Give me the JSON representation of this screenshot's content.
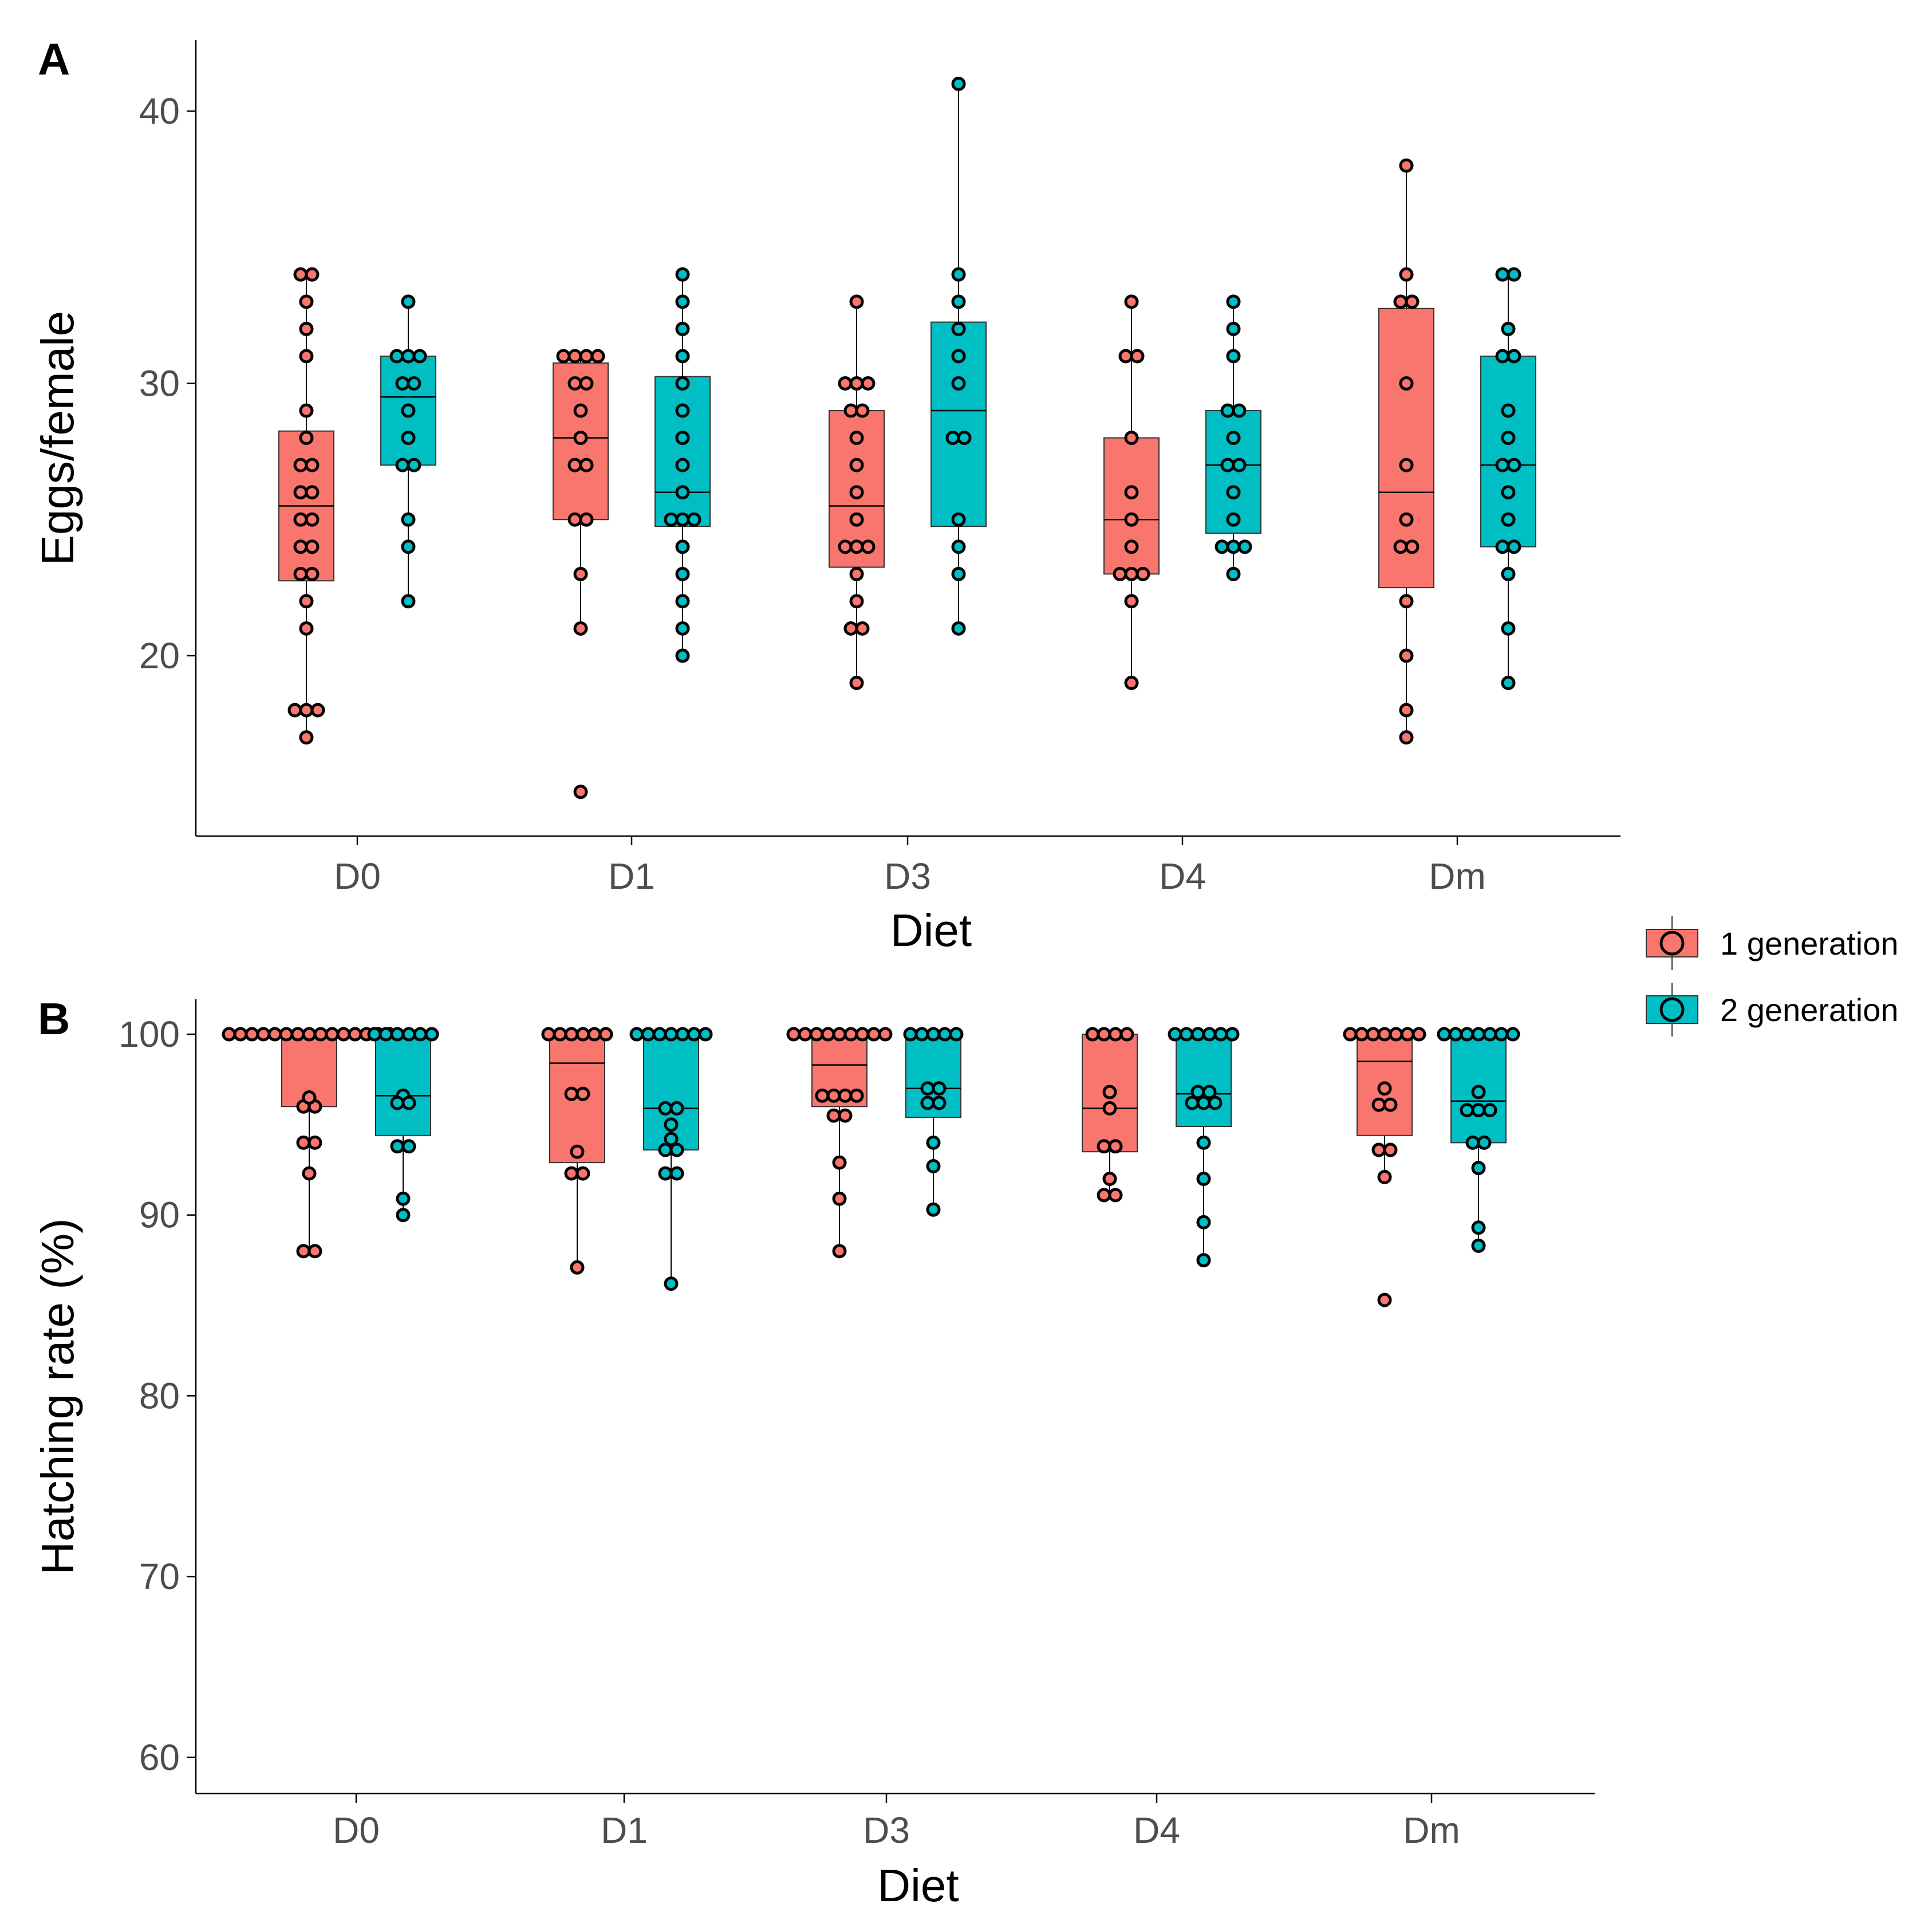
{
  "colors": {
    "gen1": "#F8766D",
    "gen2": "#00BFC4"
  },
  "legend": {
    "position": "right",
    "items": [
      {
        "label": "1 generation",
        "color": "#F8766D"
      },
      {
        "label": "2 generation",
        "color": "#00BFC4"
      }
    ]
  },
  "chart_data": [
    {
      "panel": "A",
      "type": "box",
      "xlabel": "Diet",
      "ylabel": "Eggs/female",
      "categories": [
        "D0",
        "D1",
        "D3",
        "D4",
        "Dm"
      ],
      "yticks": [
        20,
        30,
        40
      ],
      "ylim": [
        13.5,
        42.5
      ],
      "grid": false,
      "series": [
        {
          "name": "1 generation",
          "boxes": [
            {
              "category": "D0",
              "q1": 22.75,
              "median": 25.5,
              "q3": 28.25,
              "min": 17,
              "max": 34,
              "points": [
                34,
                34,
                33,
                32,
                31,
                29,
                28,
                27,
                27,
                26,
                26,
                25,
                25,
                24,
                24,
                23,
                23,
                22,
                21,
                18,
                18,
                18,
                17
              ]
            },
            {
              "category": "D1",
              "q1": 25,
              "median": 28,
              "q3": 30.75,
              "min": 21,
              "max": 31,
              "points": [
                31,
                31,
                31,
                31,
                30,
                30,
                29,
                28,
                27,
                27,
                25,
                25,
                23,
                21,
                15
              ]
            },
            {
              "category": "D3",
              "q1": 23.25,
              "median": 25.5,
              "q3": 29,
              "min": 19,
              "max": 33,
              "points": [
                33,
                30,
                30,
                30,
                29,
                29,
                28,
                27,
                26,
                25,
                24,
                24,
                24,
                23,
                22,
                21,
                21,
                19
              ]
            },
            {
              "category": "D4",
              "q1": 23,
              "median": 25,
              "q3": 28,
              "min": 19,
              "max": 33,
              "points": [
                33,
                31,
                31,
                28,
                26,
                25,
                24,
                23,
                23,
                23,
                22,
                19
              ]
            },
            {
              "category": "Dm",
              "q1": 22.5,
              "median": 26,
              "q3": 32.75,
              "min": 17,
              "max": 38,
              "points": [
                38,
                34,
                33,
                33,
                30,
                27,
                25,
                24,
                24,
                22,
                20,
                18,
                17
              ]
            }
          ]
        },
        {
          "name": "2 generation",
          "boxes": [
            {
              "category": "D0",
              "q1": 27,
              "median": 29.5,
              "q3": 31,
              "min": 22,
              "max": 33,
              "points": [
                33,
                31,
                31,
                31,
                30,
                30,
                29,
                28,
                27,
                27,
                25,
                24,
                22
              ]
            },
            {
              "category": "D1",
              "q1": 24.75,
              "median": 26,
              "q3": 30.25,
              "min": 20,
              "max": 34,
              "points": [
                34,
                33,
                32,
                31,
                30,
                29,
                28,
                27,
                26,
                25,
                25,
                25,
                24,
                23,
                22,
                21,
                20
              ]
            },
            {
              "category": "D3",
              "q1": 24.75,
              "median": 29,
              "q3": 32.25,
              "min": 21,
              "max": 41,
              "points": [
                41,
                34,
                33,
                32,
                31,
                30,
                28,
                28,
                25,
                24,
                23,
                21
              ]
            },
            {
              "category": "D4",
              "q1": 24.5,
              "median": 27,
              "q3": 29,
              "min": 23,
              "max": 33,
              "points": [
                33,
                32,
                31,
                29,
                29,
                28,
                27,
                27,
                26,
                25,
                24,
                24,
                24,
                23
              ]
            },
            {
              "category": "Dm",
              "q1": 24,
              "median": 27,
              "q3": 31,
              "min": 19,
              "max": 34,
              "points": [
                34,
                34,
                32,
                31,
                31,
                29,
                28,
                27,
                27,
                26,
                25,
                24,
                24,
                23,
                21,
                19
              ]
            }
          ]
        }
      ]
    },
    {
      "panel": "B",
      "type": "box",
      "xlabel": "Diet",
      "ylabel": "Hatching rate (%)",
      "categories": [
        "D0",
        "D1",
        "D3",
        "D4",
        "Dm"
      ],
      "yticks": [
        60,
        70,
        80,
        90,
        100
      ],
      "ylim": [
        58,
        102
      ],
      "grid": false,
      "series": [
        {
          "name": "1 generation",
          "boxes": [
            {
              "category": "D0",
              "q1": 96,
              "median": 100,
              "q3": 100,
              "min": 88,
              "max": 100,
              "points": [
                100,
                100,
                100,
                100,
                100,
                100,
                100,
                100,
                100,
                100,
                100,
                100,
                100,
                100,
                100,
                96.5,
                96,
                96,
                94,
                94,
                92.3,
                88,
                88
              ]
            },
            {
              "category": "D1",
              "q1": 92.9,
              "median": 98.4,
              "q3": 100,
              "min": 87.1,
              "max": 100,
              "points": [
                100,
                100,
                100,
                100,
                100,
                100,
                96.7,
                96.7,
                93.5,
                92.3,
                92.3,
                87.1
              ]
            },
            {
              "category": "D3",
              "q1": 96,
              "median": 98.3,
              "q3": 100,
              "min": 88,
              "max": 100,
              "points": [
                100,
                100,
                100,
                100,
                100,
                100,
                100,
                100,
                100,
                96.6,
                96.6,
                96.6,
                96.6,
                95.5,
                95.5,
                92.9,
                90.9,
                88
              ]
            },
            {
              "category": "D4",
              "q1": 93.5,
              "median": 95.9,
              "q3": 100,
              "min": 91.1,
              "max": 100,
              "points": [
                100,
                100,
                100,
                100,
                96.8,
                95.9,
                93.8,
                93.8,
                92,
                91.1,
                91.1
              ]
            },
            {
              "category": "Dm",
              "q1": 94.4,
              "median": 98.5,
              "q3": 100,
              "min": 92.1,
              "max": 100,
              "points": [
                100,
                100,
                100,
                100,
                100,
                100,
                100,
                97,
                96.1,
                96.1,
                93.6,
                93.6,
                92.1,
                85.3
              ]
            }
          ]
        },
        {
          "name": "2 generation",
          "boxes": [
            {
              "category": "D0",
              "q1": 94.4,
              "median": 96.6,
              "q3": 100,
              "min": 90,
              "max": 100,
              "points": [
                100,
                100,
                100,
                100,
                100,
                100,
                96.6,
                96.2,
                96.2,
                93.8,
                93.8,
                90.9,
                90
              ]
            },
            {
              "category": "D1",
              "q1": 93.6,
              "median": 95.9,
              "q3": 100,
              "min": 86.2,
              "max": 100,
              "points": [
                100,
                100,
                100,
                100,
                100,
                100,
                100,
                95.9,
                95.9,
                95,
                94.2,
                93.6,
                93.6,
                92.3,
                92.3,
                86.2
              ]
            },
            {
              "category": "D3",
              "q1": 95.4,
              "median": 97,
              "q3": 100,
              "min": 90.3,
              "max": 100,
              "points": [
                100,
                100,
                100,
                100,
                100,
                97,
                97,
                96.2,
                96.2,
                94,
                92.7,
                90.3
              ]
            },
            {
              "category": "D4",
              "q1": 94.9,
              "median": 96.7,
              "q3": 100,
              "min": 87.5,
              "max": 100,
              "points": [
                100,
                100,
                100,
                100,
                100,
                100,
                96.8,
                96.8,
                96.2,
                96.2,
                96.2,
                94,
                92,
                89.6,
                87.5
              ]
            },
            {
              "category": "Dm",
              "q1": 94,
              "median": 96.3,
              "q3": 100,
              "min": 88.3,
              "max": 100,
              "points": [
                100,
                100,
                100,
                100,
                100,
                100,
                100,
                96.8,
                95.8,
                95.8,
                95.8,
                94,
                94,
                92.6,
                89.3,
                88.3
              ]
            }
          ]
        }
      ]
    }
  ]
}
